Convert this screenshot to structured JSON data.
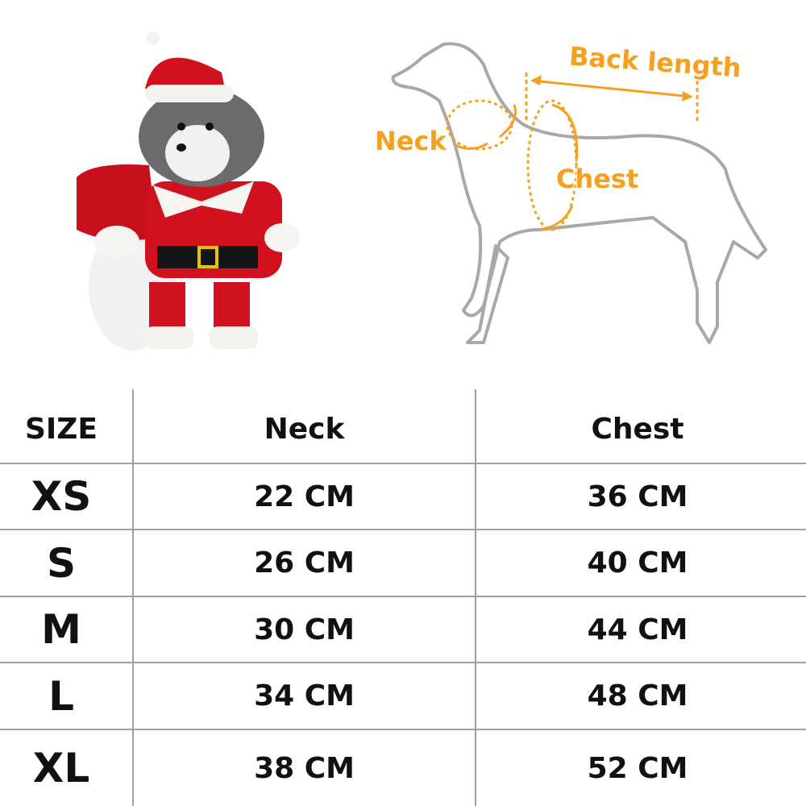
{
  "diagram": {
    "labels": {
      "back_length": "Back length",
      "neck": "Neck",
      "chest": "Chest"
    },
    "accent_color": "#f5a01e",
    "outline_color": "#a8a8a8"
  },
  "table": {
    "headers": [
      "SIZE",
      "Neck",
      "Chest"
    ],
    "rows": [
      {
        "size": "XS",
        "neck": "22 CM",
        "chest": "36 CM"
      },
      {
        "size": "S",
        "neck": "26 CM",
        "chest": "40 CM"
      },
      {
        "size": "M",
        "neck": "30 CM",
        "chest": "44 CM"
      },
      {
        "size": "L",
        "neck": "34 CM",
        "chest": "48 CM"
      },
      {
        "size": "XL",
        "neck": "38 CM",
        "chest": "52 CM"
      }
    ]
  }
}
